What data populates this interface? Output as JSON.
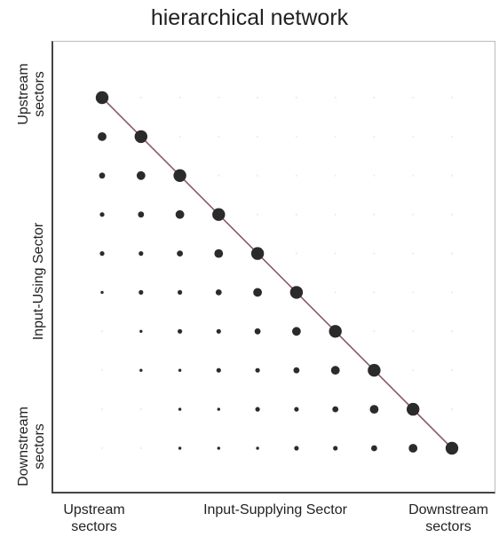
{
  "title": "hierarchical network",
  "labels": {
    "y_top_line1": "Upstream",
    "y_top_line2": "sectors",
    "y_mid": "Input-Using Sector",
    "y_bottom_line1": "Downstream",
    "y_bottom_line2": "sectors",
    "x_left_line1": "Upstream",
    "x_left_line2": "sectors",
    "x_mid": "Input-Supplying Sector",
    "x_right_line1": "Downstream",
    "x_right_line2": "sectors"
  },
  "colors": {
    "dot": "#2b2b2b",
    "diagonal": "#8a5a64",
    "faint": "#eeeeee"
  },
  "matrix": {
    "size": 10,
    "note_levels": "relative dot size per cell; 0 = empty",
    "rows": [
      [
        5,
        0,
        0,
        0,
        0,
        0,
        0,
        0,
        0,
        0
      ],
      [
        4,
        5,
        0,
        0,
        0,
        0,
        0,
        0,
        0,
        0
      ],
      [
        3,
        4,
        5,
        0,
        0,
        0,
        0,
        0,
        0,
        0
      ],
      [
        2,
        3,
        4,
        5,
        0,
        0,
        0,
        0,
        0,
        0
      ],
      [
        2,
        2,
        3,
        4,
        5,
        0,
        0,
        0,
        0,
        0
      ],
      [
        1,
        2,
        2,
        3,
        4,
        5,
        0,
        0,
        0,
        0
      ],
      [
        0,
        1,
        2,
        2,
        3,
        4,
        5,
        0,
        0,
        0
      ],
      [
        0,
        1,
        1,
        2,
        2,
        3,
        4,
        5,
        0,
        0
      ],
      [
        0,
        0,
        1,
        1,
        2,
        2,
        3,
        4,
        5,
        0
      ],
      [
        0,
        0,
        1,
        1,
        1,
        2,
        2,
        3,
        4,
        5
      ]
    ]
  }
}
